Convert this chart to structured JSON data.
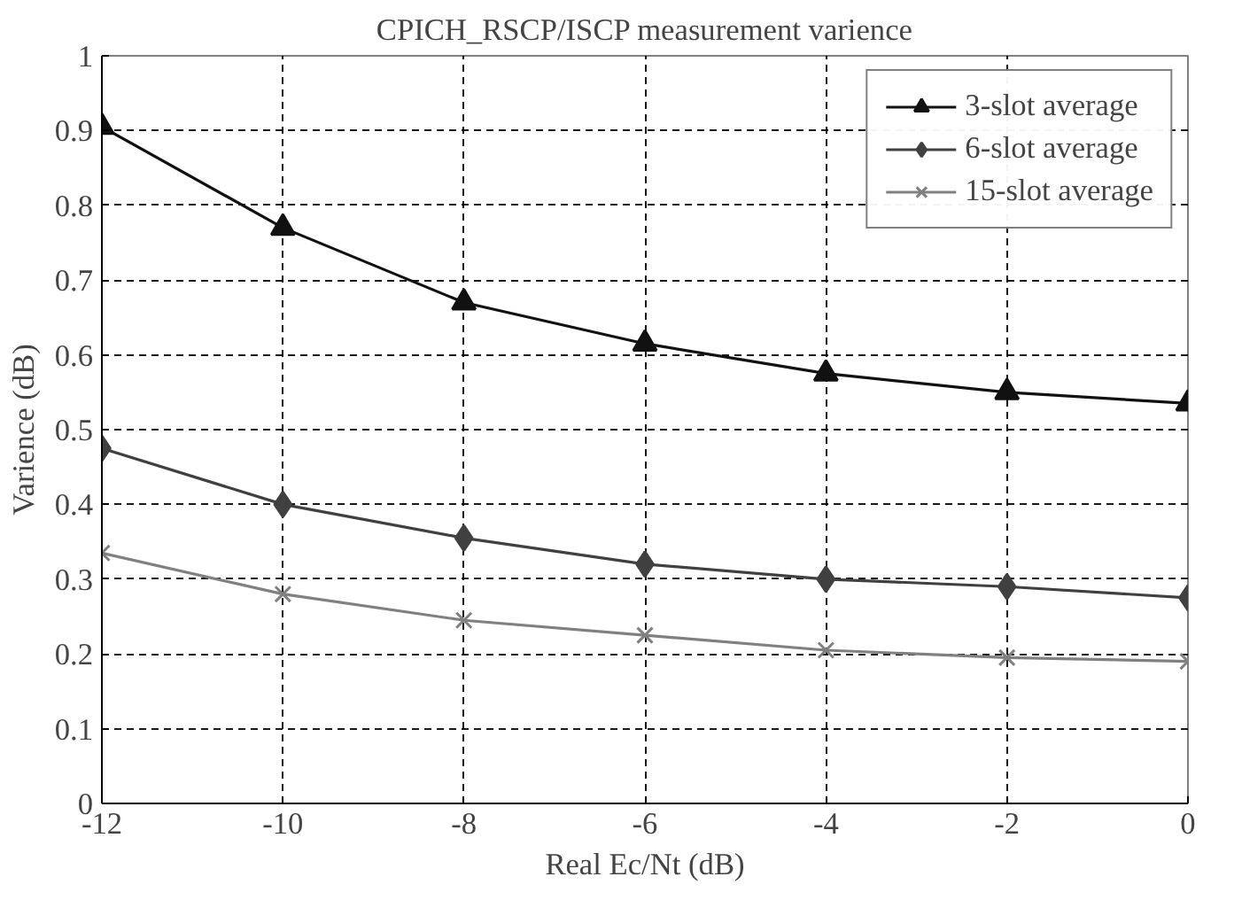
{
  "chart_data": {
    "type": "line",
    "title": "CPICH_RSCP/ISCP measurement varience",
    "xlabel": "Real Ec/Nt (dB)",
    "ylabel": "Varience (dB)",
    "x": [
      -12,
      -10,
      -8,
      -6,
      -4,
      -2,
      0
    ],
    "series": [
      {
        "name": "3-slot average",
        "color": "#111111",
        "marker": "triangle",
        "values": [
          0.905,
          0.77,
          0.67,
          0.615,
          0.575,
          0.55,
          0.535
        ]
      },
      {
        "name": "6-slot average",
        "color": "#404040",
        "marker": "diamond",
        "values": [
          0.475,
          0.4,
          0.355,
          0.32,
          0.3,
          0.29,
          0.275
        ]
      },
      {
        "name": "15-slot average",
        "color": "#808080",
        "marker": "cross",
        "values": [
          0.335,
          0.28,
          0.245,
          0.225,
          0.205,
          0.195,
          0.19
        ]
      }
    ],
    "xlim": [
      -12,
      0
    ],
    "xticks": [
      -12,
      -10,
      -8,
      -6,
      -4,
      -2,
      0
    ],
    "ylim": [
      0,
      1
    ],
    "yticks": [
      0,
      0.1,
      0.2,
      0.3,
      0.4,
      0.5,
      0.6,
      0.7,
      0.8,
      0.9,
      1
    ],
    "grid": true,
    "legend": "top right",
    "line_style": "solid"
  }
}
